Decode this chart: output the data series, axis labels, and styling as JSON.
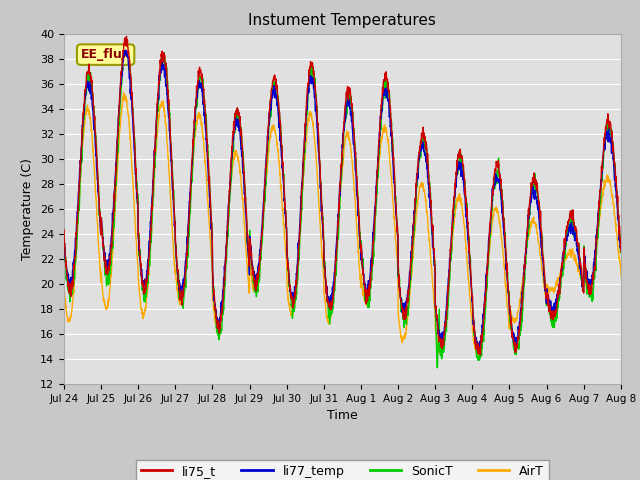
{
  "title": "Instument Temperatures",
  "xlabel": "Time",
  "ylabel": "Temperature (C)",
  "ylim": [
    12,
    40
  ],
  "yticks": [
    12,
    14,
    16,
    18,
    20,
    22,
    24,
    26,
    28,
    30,
    32,
    34,
    36,
    38,
    40
  ],
  "xtick_labels": [
    "Jul 24",
    "Jul 25",
    "Jul 26",
    "Jul 27",
    "Jul 28",
    "Jul 29",
    "Jul 30",
    "Jul 31",
    "Aug 1",
    "Aug 2",
    "Aug 3",
    "Aug 4",
    "Aug 5",
    "Aug 6",
    "Aug 7",
    "Aug 8"
  ],
  "line_colors": {
    "li75_t": "#cc0000",
    "li77_temp": "#0000cc",
    "SonicT": "#00cc00",
    "AirT": "#ffaa00"
  },
  "annotation_text": "EE_flux",
  "annotation_fg": "#8b0000",
  "annotation_bg": "#ffff99",
  "annotation_border": "#999900",
  "fig_bg": "#c8c8c8",
  "plot_bg": "#e0e0e0",
  "grid_color": "#ffffff",
  "n_days": 16,
  "peaks": [
    37.0,
    39.5,
    38.5,
    37.0,
    34.0,
    36.5,
    37.5,
    35.5,
    36.5,
    32.0,
    30.5,
    29.5,
    28.5,
    25.5,
    33.0,
    31.5
  ],
  "valleys": [
    19.5,
    21.0,
    19.5,
    19.0,
    16.5,
    20.0,
    18.5,
    18.0,
    19.0,
    17.5,
    15.0,
    14.5,
    15.0,
    17.5,
    19.5,
    20.0
  ],
  "air_peaks": [
    34.0,
    35.0,
    34.5,
    33.5,
    30.5,
    32.5,
    33.5,
    32.0,
    32.5,
    28.0,
    27.0,
    26.0,
    25.0,
    22.5,
    28.5,
    27.5
  ],
  "air_valleys": [
    17.0,
    18.0,
    17.5,
    18.5,
    16.5,
    19.5,
    17.5,
    17.0,
    18.5,
    15.5,
    14.5,
    14.5,
    17.0,
    19.5,
    19.5,
    19.5
  ]
}
